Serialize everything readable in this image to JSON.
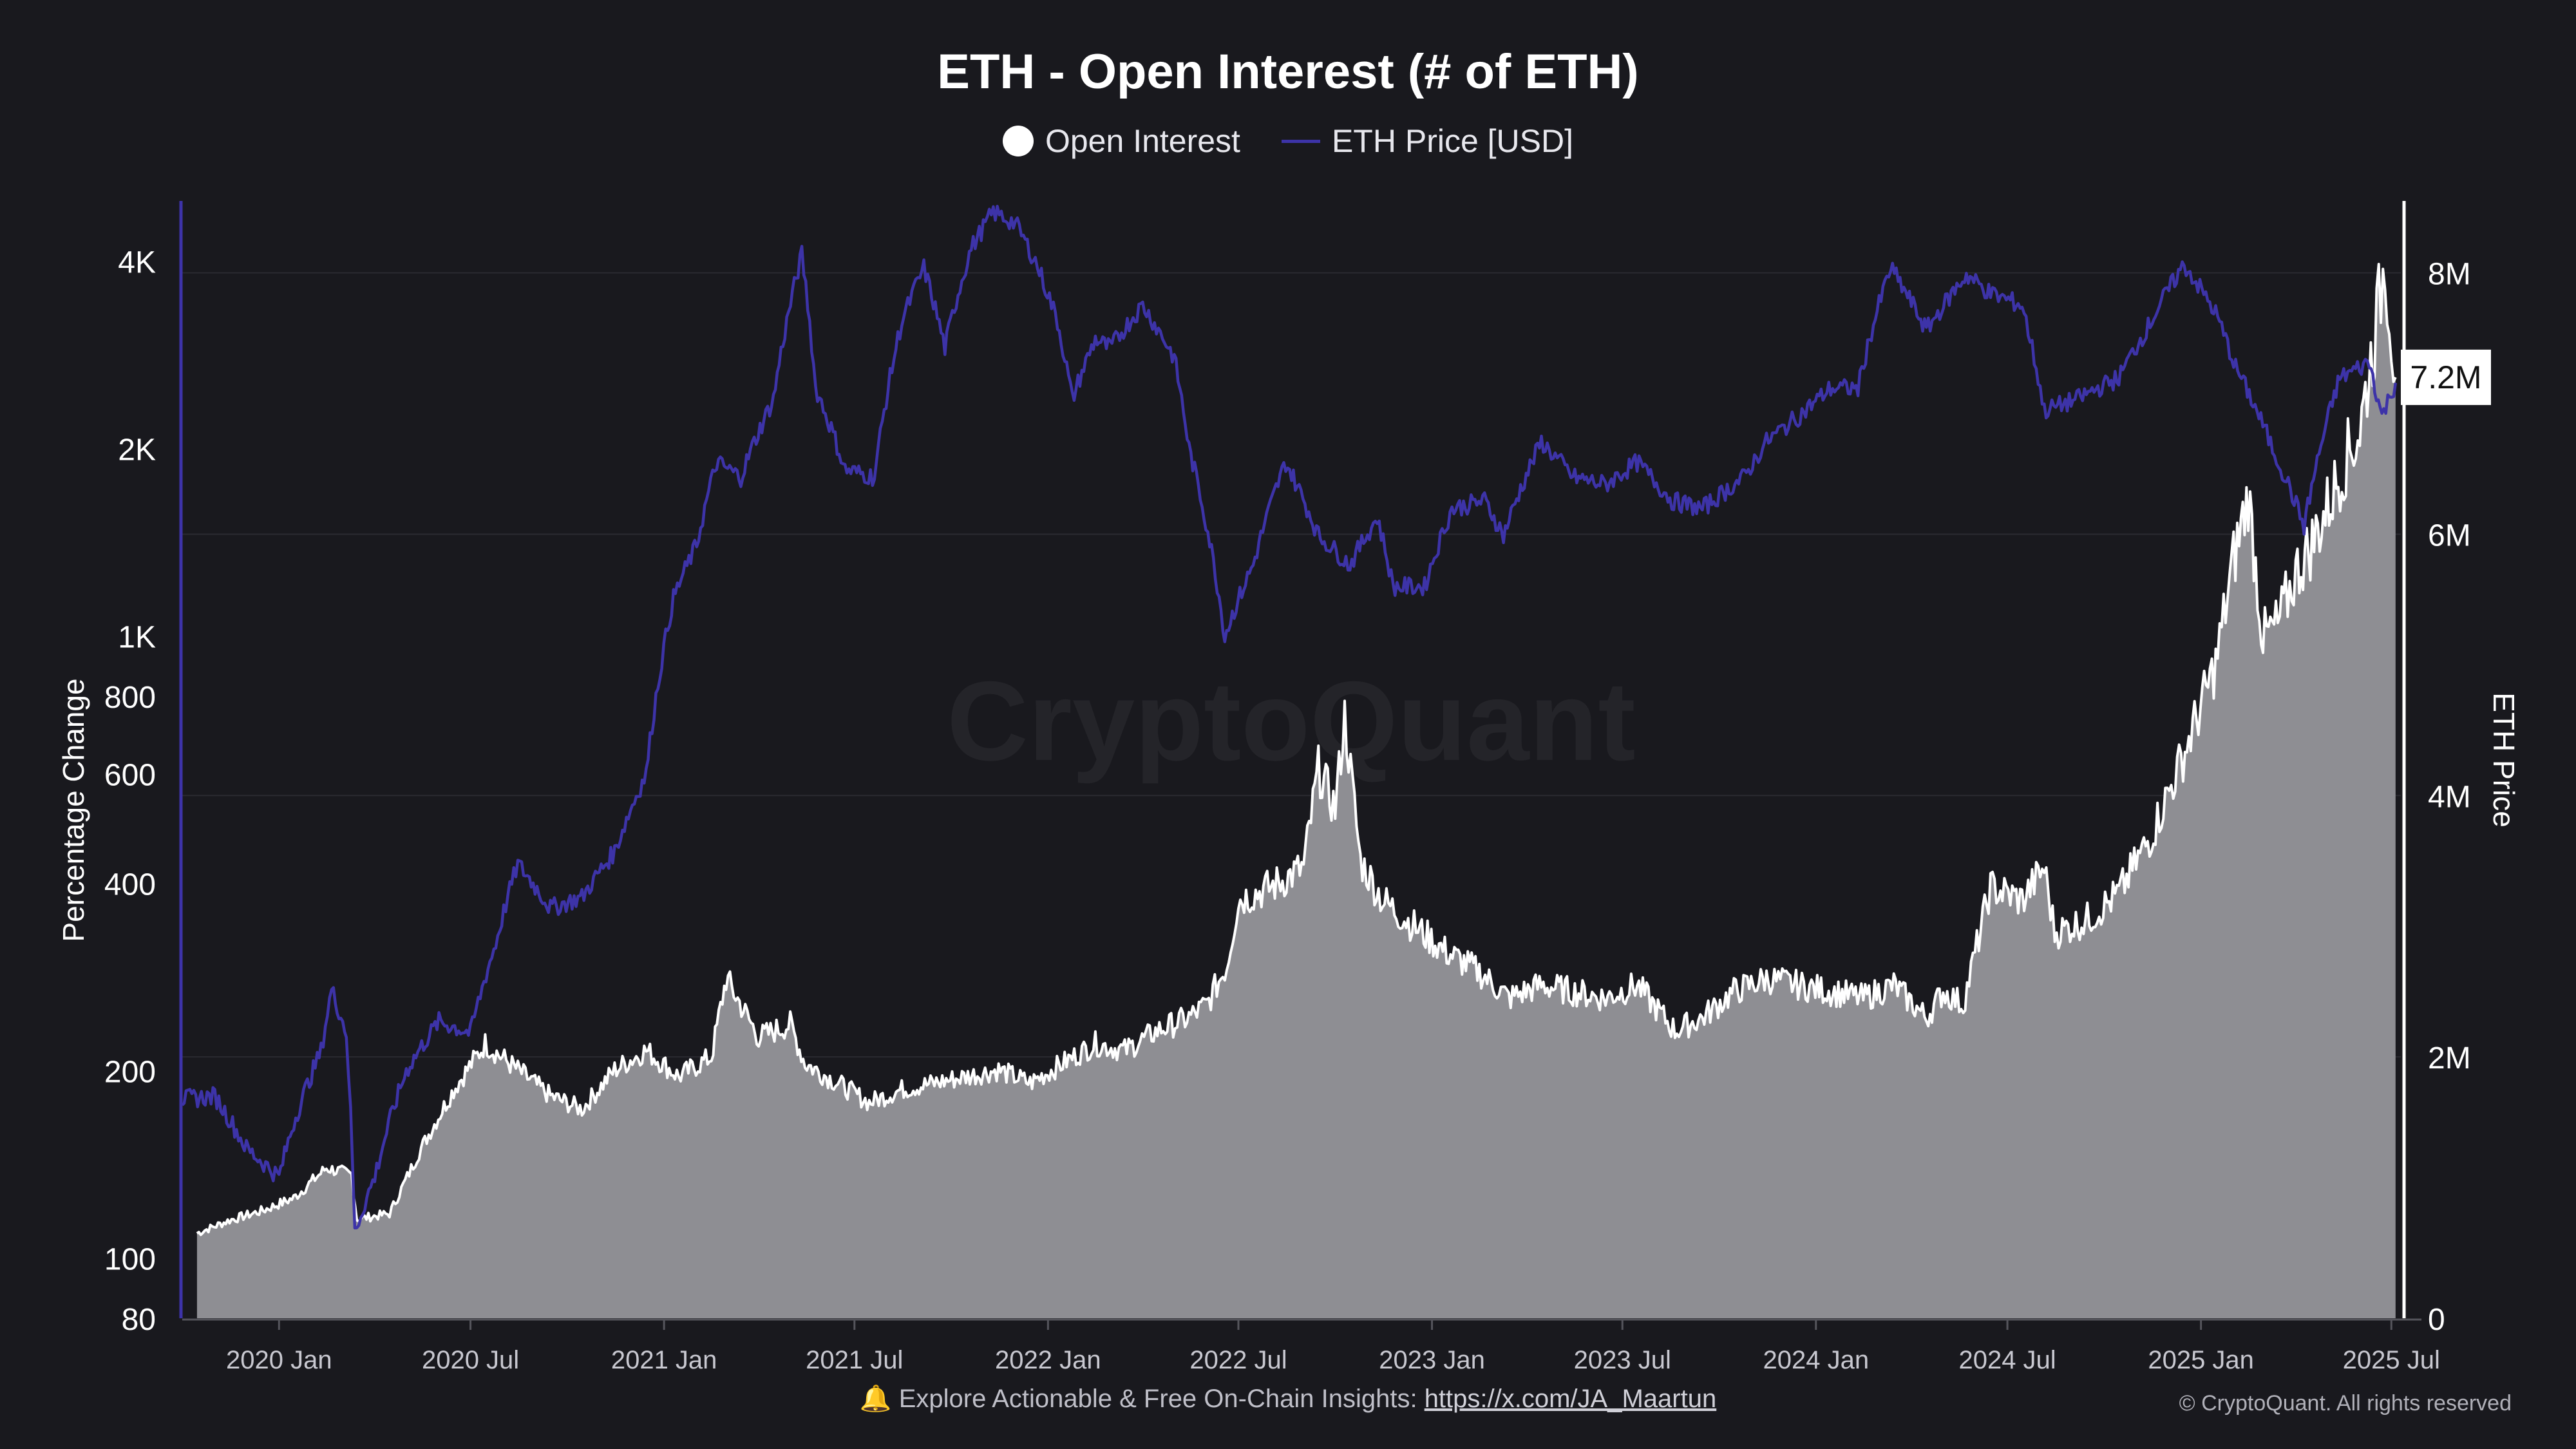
{
  "chart_data": {
    "type": "area",
    "title": "ETH - Open Interest (# of ETH)",
    "watermark": "CryptoQuant",
    "legend": [
      "Open Interest",
      "ETH Price [USD]"
    ],
    "legend_position": "top-center",
    "y_left": {
      "label": "Percentage Change",
      "scale": "log",
      "range": [
        80,
        5000
      ],
      "ticks": [
        {
          "value": 80,
          "label": "80"
        },
        {
          "value": 100,
          "label": "100"
        },
        {
          "value": 200,
          "label": "200"
        },
        {
          "value": 400,
          "label": "400"
        },
        {
          "value": 600,
          "label": "600"
        },
        {
          "value": 800,
          "label": "800"
        },
        {
          "value": 1000,
          "label": "1K"
        },
        {
          "value": 2000,
          "label": "2K"
        },
        {
          "value": 4000,
          "label": "4K"
        }
      ]
    },
    "y_right": {
      "label": "ETH Price",
      "scale": "linear",
      "range": [
        0,
        8550000
      ],
      "ticks": [
        {
          "value": 0,
          "label": "0"
        },
        {
          "value": 2000000,
          "label": "2M"
        },
        {
          "value": 4000000,
          "label": "4M"
        },
        {
          "value": 6000000,
          "label": "6M"
        },
        {
          "value": 8000000,
          "label": "8M"
        }
      ],
      "current_value_badge": "7.2M",
      "current_value": 7200000
    },
    "x_axis": {
      "range": [
        "2019-10-01",
        "2025-07-10"
      ],
      "ticks": [
        {
          "date": "2020-01-01",
          "label": "2020 Jan"
        },
        {
          "date": "2020-07-01",
          "label": "2020 Jul"
        },
        {
          "date": "2021-01-01",
          "label": "2021 Jan"
        },
        {
          "date": "2021-07-01",
          "label": "2021 Jul"
        },
        {
          "date": "2022-01-01",
          "label": "2022 Jan"
        },
        {
          "date": "2022-07-01",
          "label": "2022 Jul"
        },
        {
          "date": "2023-01-01",
          "label": "2023 Jan"
        },
        {
          "date": "2023-07-01",
          "label": "2023 Jul"
        },
        {
          "date": "2024-01-01",
          "label": "2024 Jan"
        },
        {
          "date": "2024-07-01",
          "label": "2024 Jul"
        },
        {
          "date": "2025-01-01",
          "label": "2025 Jan"
        },
        {
          "date": "2025-07-01",
          "label": "2025 Jul"
        }
      ]
    },
    "series": [
      {
        "name": "Open Interest",
        "axis": "right",
        "color": "#ffffff",
        "fill": "#8e8e93",
        "points": [
          [
            "2019-10-15",
            650000
          ],
          [
            "2019-11-15",
            750000
          ],
          [
            "2019-12-15",
            820000
          ],
          [
            "2020-01-15",
            920000
          ],
          [
            "2020-02-15",
            1150000
          ],
          [
            "2020-03-10",
            1100000
          ],
          [
            "2020-03-15",
            760000
          ],
          [
            "2020-04-15",
            800000
          ],
          [
            "2020-05-15",
            1300000
          ],
          [
            "2020-06-15",
            1750000
          ],
          [
            "2020-07-15",
            2100000
          ],
          [
            "2020-08-15",
            1900000
          ],
          [
            "2020-09-15",
            1700000
          ],
          [
            "2020-10-15",
            1600000
          ],
          [
            "2020-11-15",
            1900000
          ],
          [
            "2020-12-15",
            2050000
          ],
          [
            "2021-01-15",
            1850000
          ],
          [
            "2021-02-15",
            2000000
          ],
          [
            "2021-03-01",
            2600000
          ],
          [
            "2021-04-01",
            2150000
          ],
          [
            "2021-05-01",
            2250000
          ],
          [
            "2021-05-15",
            1950000
          ],
          [
            "2021-06-15",
            1800000
          ],
          [
            "2021-07-15",
            1650000
          ],
          [
            "2021-08-15",
            1750000
          ],
          [
            "2021-09-15",
            1800000
          ],
          [
            "2021-10-15",
            1850000
          ],
          [
            "2021-11-15",
            1900000
          ],
          [
            "2021-12-15",
            1800000
          ],
          [
            "2022-01-15",
            1950000
          ],
          [
            "2022-02-15",
            2100000
          ],
          [
            "2022-03-15",
            2050000
          ],
          [
            "2022-04-15",
            2200000
          ],
          [
            "2022-05-15",
            2300000
          ],
          [
            "2022-06-01",
            2400000
          ],
          [
            "2022-06-20",
            2700000
          ],
          [
            "2022-07-01",
            3200000
          ],
          [
            "2022-08-01",
            3300000
          ],
          [
            "2022-09-01",
            3450000
          ],
          [
            "2022-09-15",
            4200000
          ],
          [
            "2022-10-01",
            3900000
          ],
          [
            "2022-10-10",
            4600000
          ],
          [
            "2022-10-25",
            3500000
          ],
          [
            "2022-11-15",
            3200000
          ],
          [
            "2022-12-15",
            3000000
          ],
          [
            "2023-01-15",
            2800000
          ],
          [
            "2023-02-15",
            2650000
          ],
          [
            "2023-03-15",
            2450000
          ],
          [
            "2023-04-15",
            2550000
          ],
          [
            "2023-05-15",
            2500000
          ],
          [
            "2023-06-15",
            2450000
          ],
          [
            "2023-07-15",
            2550000
          ],
          [
            "2023-08-20",
            2200000
          ],
          [
            "2023-09-15",
            2300000
          ],
          [
            "2023-10-15",
            2500000
          ],
          [
            "2023-11-15",
            2600000
          ],
          [
            "2023-12-15",
            2550000
          ],
          [
            "2024-01-15",
            2500000
          ],
          [
            "2024-02-15",
            2450000
          ],
          [
            "2024-03-15",
            2550000
          ],
          [
            "2024-04-15",
            2300000
          ],
          [
            "2024-05-01",
            2500000
          ],
          [
            "2024-05-20",
            2400000
          ],
          [
            "2024-06-15",
            3300000
          ],
          [
            "2024-07-15",
            3200000
          ],
          [
            "2024-08-05",
            3450000
          ],
          [
            "2024-08-15",
            2950000
          ],
          [
            "2024-09-15",
            3050000
          ],
          [
            "2024-10-15",
            3250000
          ],
          [
            "2024-11-15",
            3700000
          ],
          [
            "2024-12-15",
            4300000
          ],
          [
            "2025-01-15",
            5000000
          ],
          [
            "2025-02-01",
            5800000
          ],
          [
            "2025-02-15",
            6300000
          ],
          [
            "2025-03-01",
            5200000
          ],
          [
            "2025-03-15",
            5300000
          ],
          [
            "2025-04-01",
            5700000
          ],
          [
            "2025-04-15",
            5900000
          ],
          [
            "2025-05-01",
            6200000
          ],
          [
            "2025-05-15",
            6500000
          ],
          [
            "2025-06-01",
            6800000
          ],
          [
            "2025-06-15",
            7500000
          ],
          [
            "2025-06-25",
            8100000
          ],
          [
            "2025-07-05",
            7200000
          ]
        ]
      },
      {
        "name": "ETH Price [USD]",
        "axis": "left",
        "color": "#3d33a8",
        "points": [
          [
            "2019-10-01",
            180
          ],
          [
            "2019-11-01",
            182
          ],
          [
            "2019-12-01",
            150
          ],
          [
            "2020-01-01",
            135
          ],
          [
            "2020-01-15",
            165
          ],
          [
            "2020-02-10",
            215
          ],
          [
            "2020-02-20",
            270
          ],
          [
            "2020-03-05",
            230
          ],
          [
            "2020-03-13",
            110
          ],
          [
            "2020-04-01",
            135
          ],
          [
            "2020-05-01",
            200
          ],
          [
            "2020-06-01",
            240
          ],
          [
            "2020-07-01",
            230
          ],
          [
            "2020-07-25",
            320
          ],
          [
            "2020-08-15",
            430
          ],
          [
            "2020-09-15",
            365
          ],
          [
            "2020-10-15",
            380
          ],
          [
            "2020-11-15",
            450
          ],
          [
            "2020-12-15",
            600
          ],
          [
            "2021-01-10",
            1150
          ],
          [
            "2021-02-01",
            1400
          ],
          [
            "2021-02-20",
            1900
          ],
          [
            "2021-03-15",
            1800
          ],
          [
            "2021-04-15",
            2400
          ],
          [
            "2021-05-12",
            4100
          ],
          [
            "2021-05-25",
            2500
          ],
          [
            "2021-06-22",
            1850
          ],
          [
            "2021-07-20",
            1800
          ],
          [
            "2021-08-15",
            3200
          ],
          [
            "2021-09-05",
            3900
          ],
          [
            "2021-09-25",
            2900
          ],
          [
            "2021-10-20",
            4200
          ],
          [
            "2021-11-10",
            4800
          ],
          [
            "2021-12-01",
            4600
          ],
          [
            "2021-12-20",
            4000
          ],
          [
            "2022-01-10",
            3200
          ],
          [
            "2022-01-24",
            2400
          ],
          [
            "2022-02-15",
            3000
          ],
          [
            "2022-03-01",
            2900
          ],
          [
            "2022-04-01",
            3400
          ],
          [
            "2022-05-01",
            2800
          ],
          [
            "2022-05-15",
            2000
          ],
          [
            "2022-06-18",
            1000
          ],
          [
            "2022-07-15",
            1300
          ],
          [
            "2022-08-15",
            1900
          ],
          [
            "2022-09-15",
            1450
          ],
          [
            "2022-10-15",
            1300
          ],
          [
            "2022-11-10",
            1550
          ],
          [
            "2022-11-25",
            1200
          ],
          [
            "2022-12-25",
            1200
          ],
          [
            "2023-01-20",
            1600
          ],
          [
            "2023-02-20",
            1650
          ],
          [
            "2023-03-10",
            1450
          ],
          [
            "2023-04-15",
            2050
          ],
          [
            "2023-05-15",
            1800
          ],
          [
            "2023-06-15",
            1750
          ],
          [
            "2023-07-15",
            1900
          ],
          [
            "2023-08-17",
            1650
          ],
          [
            "2023-09-15",
            1600
          ],
          [
            "2023-10-25",
            1800
          ],
          [
            "2023-11-15",
            2050
          ],
          [
            "2023-12-15",
            2250
          ],
          [
            "2024-01-15",
            2500
          ],
          [
            "2024-02-10",
            2500
          ],
          [
            "2024-03-12",
            3900
          ],
          [
            "2024-04-15",
            3100
          ],
          [
            "2024-05-23",
            3800
          ],
          [
            "2024-06-15",
            3550
          ],
          [
            "2024-07-15",
            3400
          ],
          [
            "2024-08-05",
            2300
          ],
          [
            "2024-09-05",
            2400
          ],
          [
            "2024-10-15",
            2600
          ],
          [
            "2024-11-10",
            3100
          ],
          [
            "2024-12-16",
            3950
          ],
          [
            "2025-01-15",
            3300
          ],
          [
            "2025-02-03",
            2700
          ],
          [
            "2025-03-10",
            2000
          ],
          [
            "2025-04-09",
            1500
          ],
          [
            "2025-05-13",
            2600
          ],
          [
            "2025-06-10",
            2750
          ],
          [
            "2025-06-22",
            2250
          ],
          [
            "2025-07-05",
            2550
          ]
        ]
      }
    ]
  },
  "footer": {
    "prefix": "🔔 Explore Actionable & Free On-Chain Insights: ",
    "link": "https://x.com/JA_Maartun"
  },
  "copyright": "© CryptoQuant. All rights reserved"
}
